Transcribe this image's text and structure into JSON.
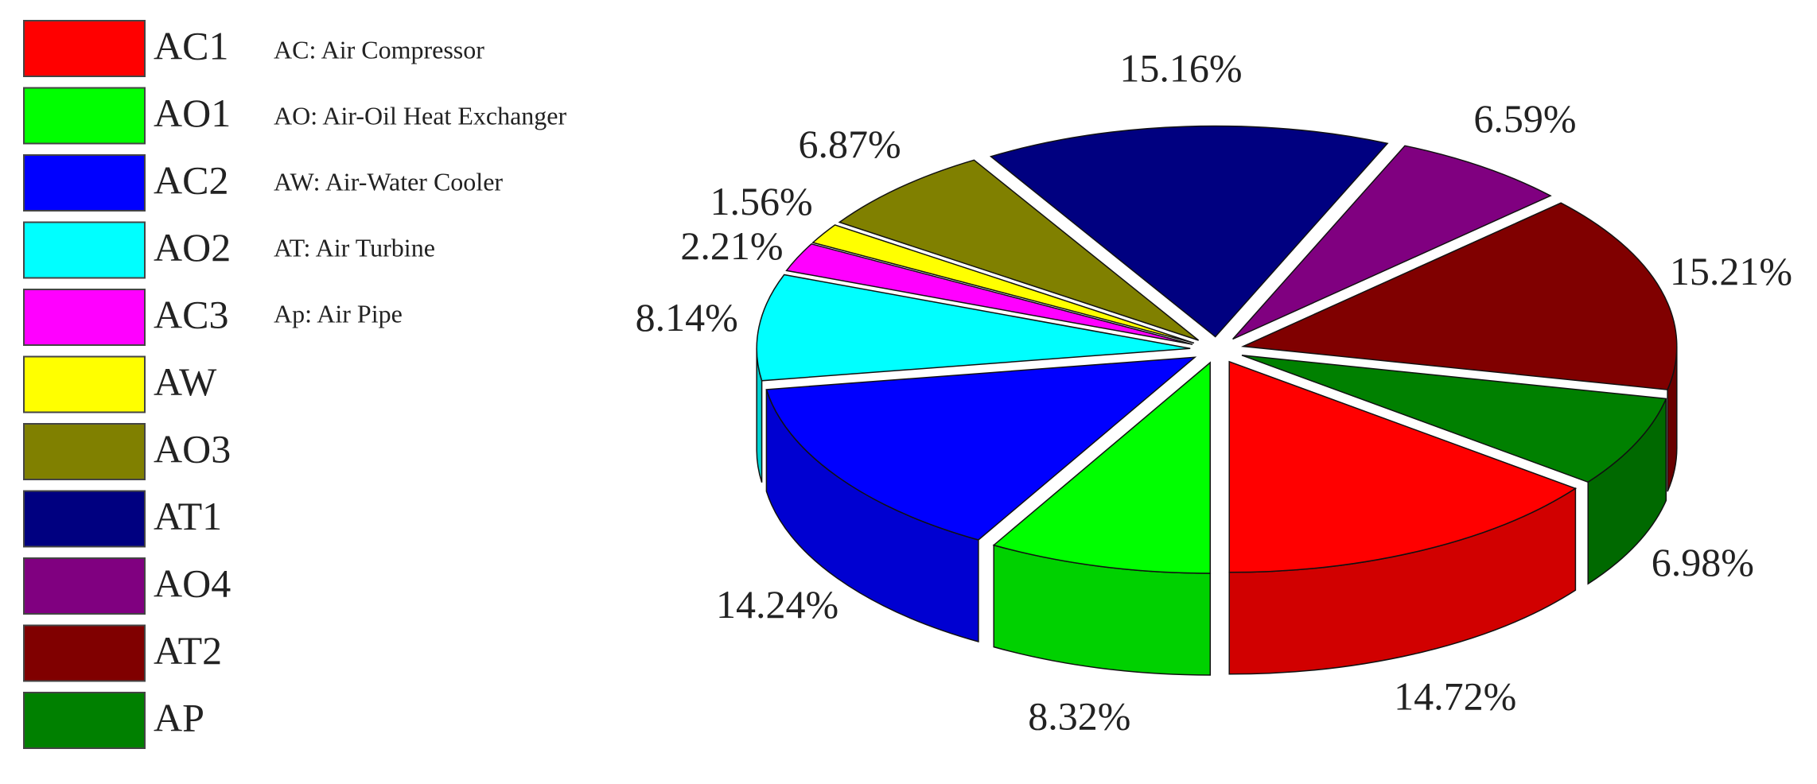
{
  "chart_data": {
    "type": "pie",
    "categories": [
      "AC1",
      "AO1",
      "AC2",
      "AO2",
      "AC3",
      "AW",
      "AO3",
      "AT1",
      "AO4",
      "AT2",
      "AP"
    ],
    "values": [
      14.72,
      8.32,
      14.24,
      8.14,
      2.21,
      1.56,
      6.87,
      15.16,
      6.59,
      15.21,
      6.98
    ],
    "value_labels": [
      "14.72%",
      "8.32%",
      "14.24%",
      "8.14%",
      "2.21%",
      "1.56%",
      "6.87%",
      "15.16%",
      "6.59%",
      "15.21%",
      "6.98%"
    ],
    "colors": [
      "#ff0000",
      "#00ff00",
      "#0000ff",
      "#00ffff",
      "#ff00ff",
      "#ffff00",
      "#808000",
      "#000080",
      "#800080",
      "#800000",
      "#008000"
    ],
    "annotations": [
      "AC: Air Compressor",
      "AO: Air-Oil Heat Exchanger",
      "AW: Air-Water Cooler",
      "AT: Air Turbine",
      "Ap: Air Pipe"
    ]
  }
}
